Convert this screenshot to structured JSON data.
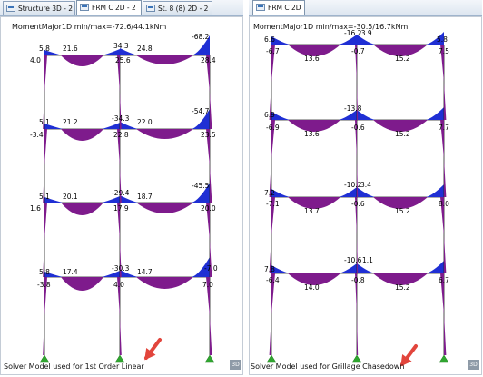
{
  "left_window": {
    "tabs": [
      {
        "label": "Structure 3D - 2"
      },
      {
        "label": "FRM C 2D - 2"
      },
      {
        "label": "St. 8 (8) 2D - 2"
      }
    ],
    "header": "MomentMajor1D min/max=-72.6/44.1kNm",
    "footer": "Solver Model used for 1st Order Linear",
    "view_button": "3D",
    "labels": [
      "5.8",
      "21.6",
      "34.3",
      "24.8",
      "-68.2",
      "4.0",
      "25.6",
      "28.4",
      "5.1",
      "21.2",
      "-34.3",
      "22.0",
      "-54.7",
      "-3.4",
      "22.8",
      "23.5",
      "5.1",
      "20.1",
      "-29.4",
      "18.7",
      "-45.5",
      "1.6",
      "17.9",
      "20.0",
      "5.8",
      "17.4",
      "-30.3",
      "14.7",
      "-7.0",
      "-3.8",
      "4.0",
      "7.0"
    ]
  },
  "right_window": {
    "tabs": [
      {
        "label": "FRM C 2D"
      }
    ],
    "header": "MomentMajor1D min/max=-30.5/16.7kNm",
    "footer": "Solver Model used for Grillage Chasedown",
    "view_button": "3D",
    "labels": [
      "6.6",
      "-16.2",
      "-3.9",
      "5.8",
      "-6.7",
      "13.6",
      "-0.7",
      "15.2",
      "7.5",
      "6.9",
      "-13.8",
      "-6.9",
      "13.6",
      "-0.6",
      "15.2",
      "7.7",
      "7.2",
      "-10.2",
      "3.4",
      "-7.1",
      "13.7",
      "-0.6",
      "15.2",
      "8.0",
      "7.8",
      "-10.6",
      "1.1",
      "-6.4",
      "14.0",
      "-0.8",
      "15.2",
      "6.7"
    ]
  },
  "colors": {
    "positive": "#7e1b8c",
    "negative": "#1f2fd4",
    "support": "#2fa52f",
    "arrow": "#e2453c"
  }
}
